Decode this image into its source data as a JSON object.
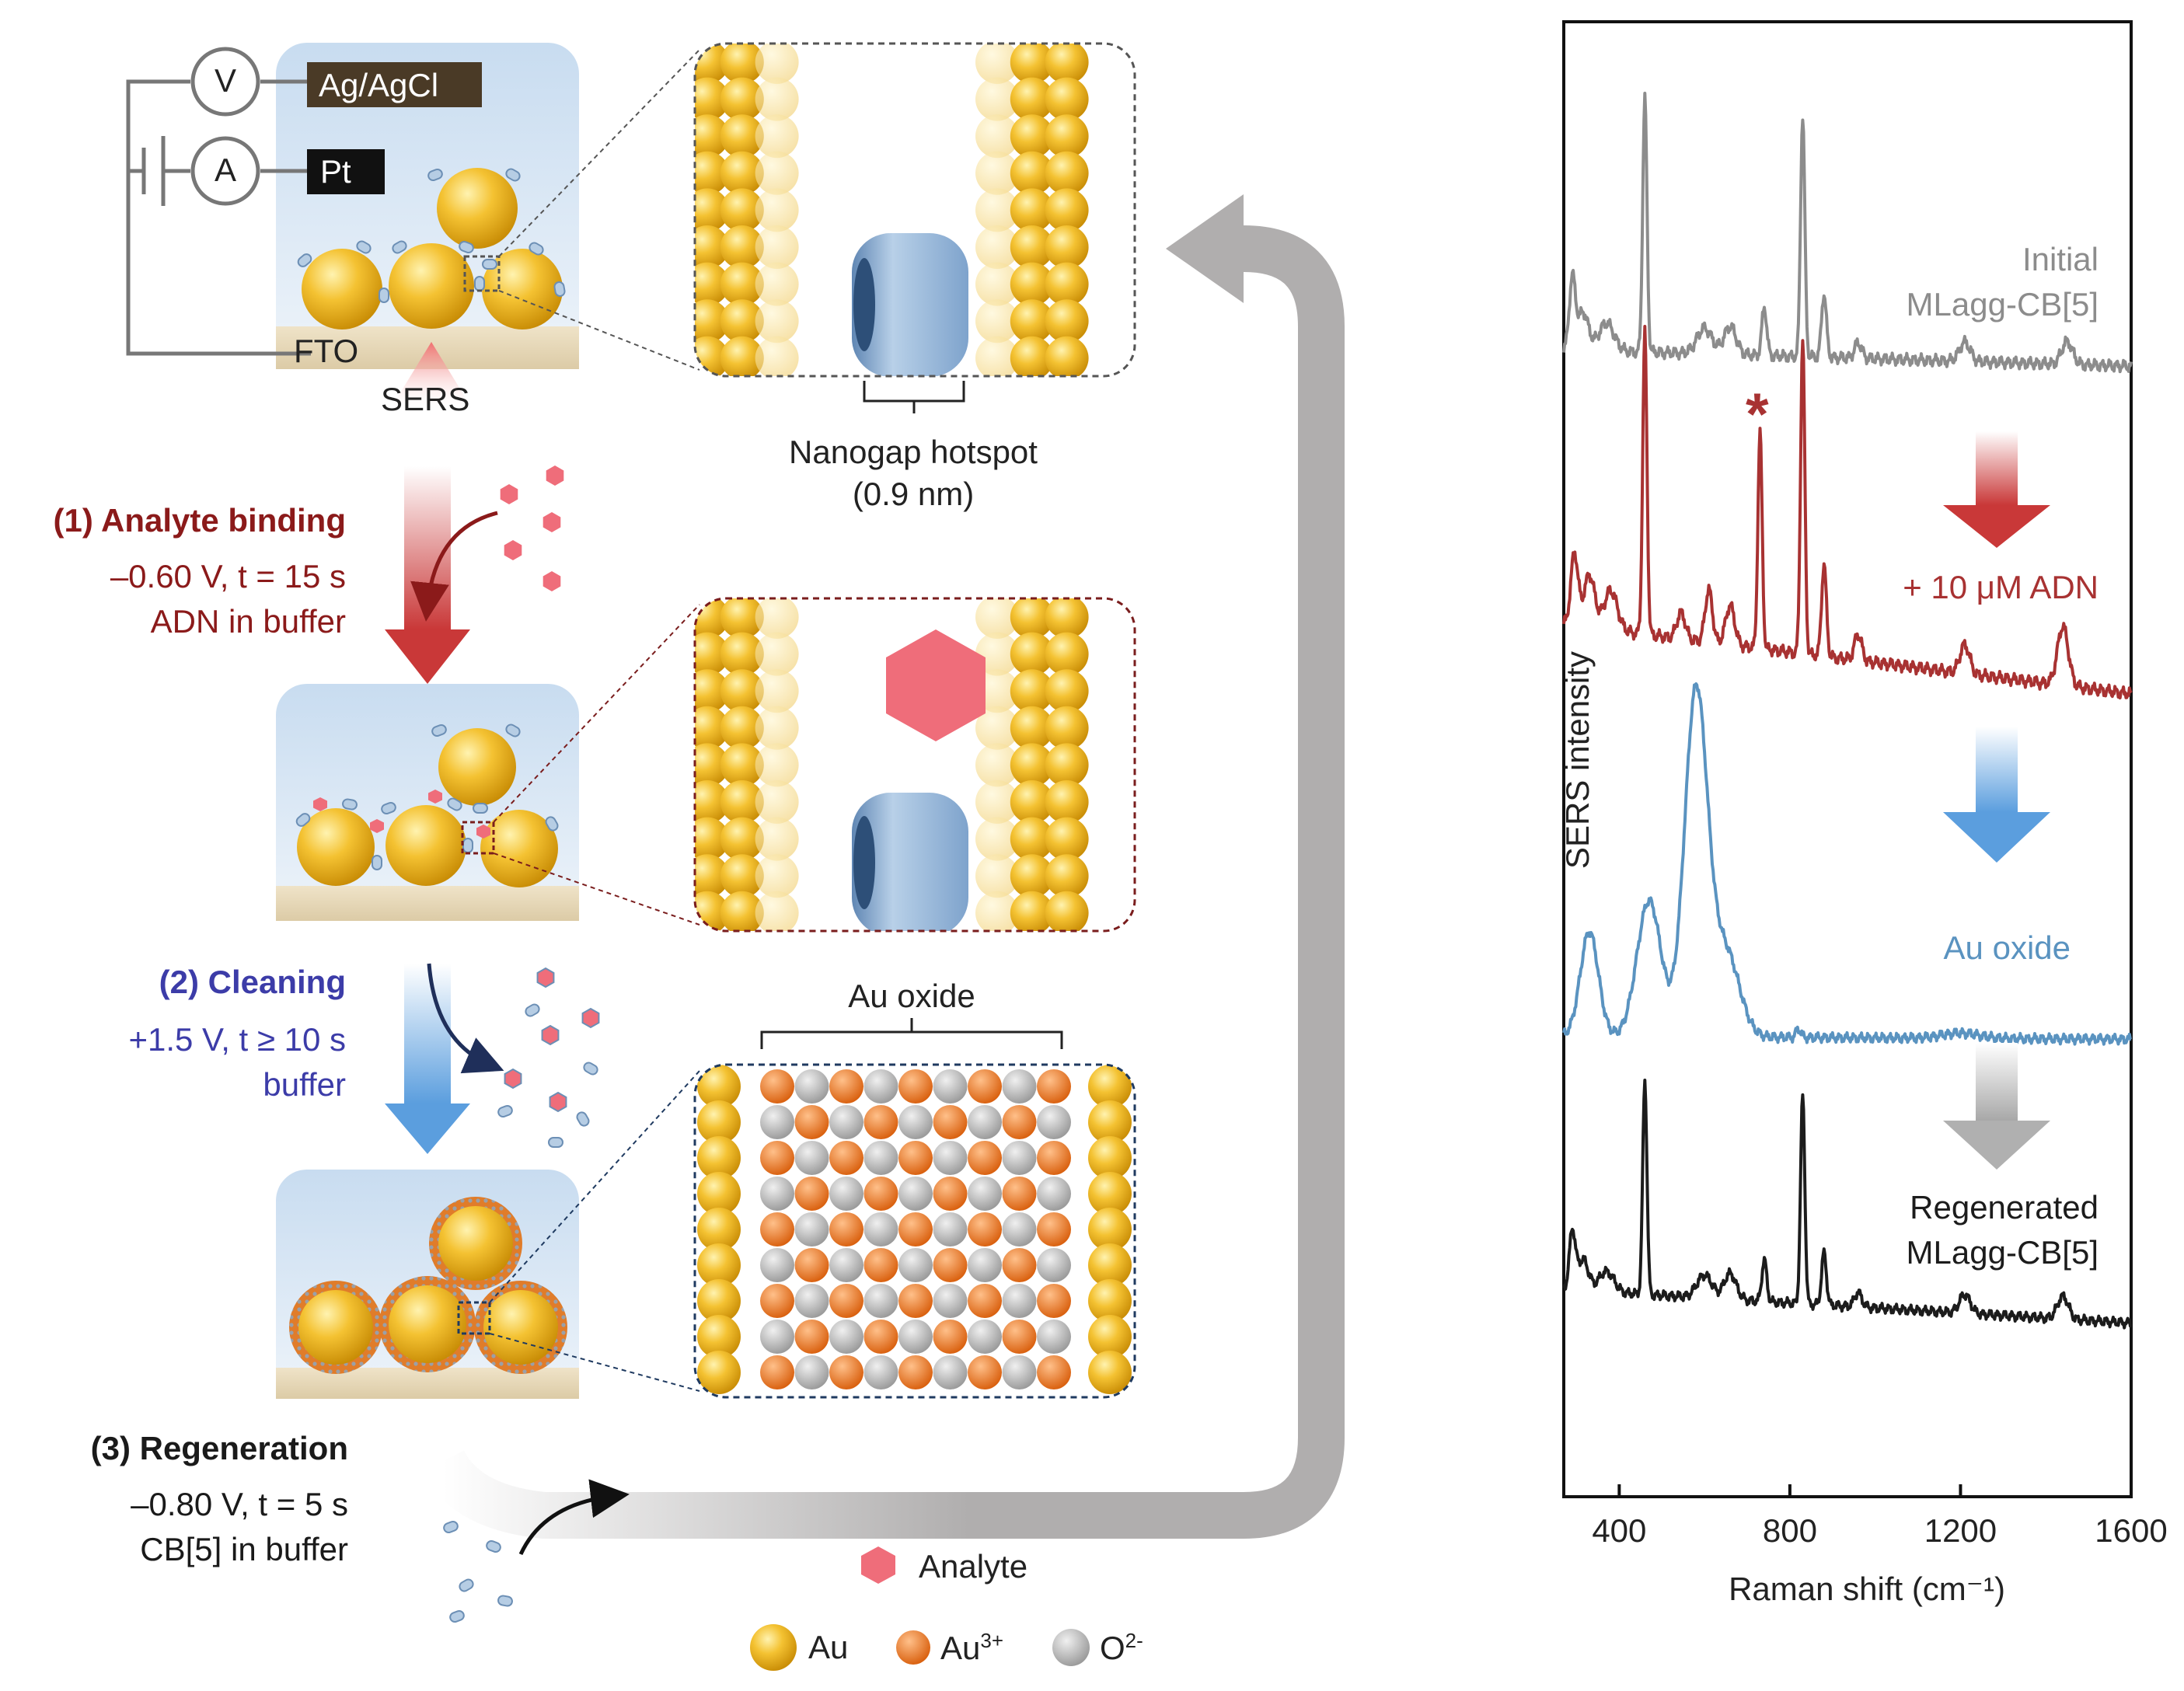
{
  "setup": {
    "voltmeter": "V",
    "ammeter": "A",
    "reference_electrode": "Ag/AgCl",
    "counter_electrode": "Pt",
    "substrate": "FTO",
    "laser": "SERS"
  },
  "hotspot": {
    "label": "Nanogap hotspot",
    "size": "(0.9 nm)"
  },
  "steps": [
    {
      "title": "(1) Analyte binding",
      "line1": "–0.60 V, t = 15 s",
      "line2": "ADN in buffer",
      "color": "#8b1a1a"
    },
    {
      "title": "(2) Cleaning",
      "line1": "+1.5 V, t ≥ 10 s",
      "line2": "buffer",
      "color": "#3c3ca8"
    },
    {
      "title": "(3) Regeneration",
      "line1": "–0.80 V, t = 5 s",
      "line2": "CB[5] in buffer",
      "color": "#1a1a1a"
    }
  ],
  "oxide_label": "Au oxide",
  "legend": {
    "analyte": "Analyte",
    "au": "Au",
    "au3": "Au",
    "au3_sup": "3+",
    "o2": "O",
    "o2_sup": "2-"
  },
  "colors": {
    "gold": "#f2b71e",
    "cb5": "#9ab7d6",
    "analyte": "#ef6d7a",
    "au3": "#e8731e",
    "o2": "#b4b4b4",
    "spectrum_initial": "#8c8c8c",
    "spectrum_adn": "#a83232",
    "spectrum_oxide": "#5a93c0",
    "spectrum_regen": "#1c1c1c"
  },
  "chart_data": {
    "type": "line",
    "xlabel": "Raman shift (cm⁻¹)",
    "ylabel": "SERS intensity",
    "xlim": [
      270,
      1600
    ],
    "xticks": [
      400,
      800,
      1200,
      1600
    ],
    "yticks_shown": false,
    "series": [
      {
        "name": "Initial MLagg-CB[5]",
        "label_line1": "Initial",
        "label_line2": "MLagg-CB[5]",
        "color": "#8c8c8c",
        "baseline": [
          [
            270,
            0.55
          ],
          [
            1600,
            0.42
          ]
        ],
        "peaks": [
          [
            290,
            0.55,
            10
          ],
          [
            315,
            0.3,
            18
          ],
          [
            370,
            0.22,
            25
          ],
          [
            460,
            2.0,
            7
          ],
          [
            600,
            0.2,
            25
          ],
          [
            660,
            0.22,
            20
          ],
          [
            740,
            0.38,
            8
          ],
          [
            830,
            1.9,
            7
          ],
          [
            880,
            0.5,
            8
          ],
          [
            960,
            0.12,
            12
          ],
          [
            1210,
            0.15,
            18
          ],
          [
            1450,
            0.18,
            18
          ]
        ]
      },
      {
        "name": "+ 10 μM ADN",
        "label_line1": "+ 10 μM ADN",
        "label_line2": "",
        "color": "#a83232",
        "marker": "*",
        "baseline": [
          [
            270,
            0.75
          ],
          [
            1600,
            0.22
          ]
        ],
        "peaks": [
          [
            295,
            0.55,
            12
          ],
          [
            330,
            0.4,
            18
          ],
          [
            380,
            0.3,
            22
          ],
          [
            460,
            2.3,
            7
          ],
          [
            545,
            0.2,
            14
          ],
          [
            610,
            0.4,
            12
          ],
          [
            660,
            0.3,
            15
          ],
          [
            730,
            1.65,
            7
          ],
          [
            830,
            2.4,
            7
          ],
          [
            880,
            0.7,
            8
          ],
          [
            960,
            0.2,
            12
          ],
          [
            1210,
            0.22,
            16
          ],
          [
            1440,
            0.45,
            18
          ]
        ]
      },
      {
        "name": "Au oxide",
        "label_line1": "Au oxide",
        "label_line2": "",
        "color": "#5a93c0",
        "baseline": [
          [
            270,
            0.05
          ],
          [
            1600,
            0.02
          ]
        ],
        "peaks": [
          [
            330,
            1.0,
            30
          ],
          [
            470,
            1.3,
            40
          ],
          [
            580,
            3.3,
            38
          ],
          [
            650,
            0.8,
            45
          ],
          [
            820,
            0.08,
            8
          ],
          [
            1200,
            0.05,
            60
          ]
        ]
      },
      {
        "name": "Regenerated MLagg-CB[5]",
        "label_line1": "Regenerated",
        "label_line2": "MLagg-CB[5]",
        "color": "#1c1c1c",
        "baseline": [
          [
            270,
            0.6
          ],
          [
            1600,
            0.28
          ]
        ],
        "peaks": [
          [
            290,
            0.55,
            10
          ],
          [
            315,
            0.3,
            18
          ],
          [
            370,
            0.2,
            25
          ],
          [
            460,
            2.05,
            7
          ],
          [
            600,
            0.22,
            25
          ],
          [
            660,
            0.25,
            20
          ],
          [
            740,
            0.4,
            8
          ],
          [
            830,
            2.0,
            7
          ],
          [
            880,
            0.5,
            8
          ],
          [
            960,
            0.14,
            12
          ],
          [
            1210,
            0.18,
            18
          ],
          [
            1440,
            0.22,
            18
          ]
        ]
      }
    ]
  }
}
